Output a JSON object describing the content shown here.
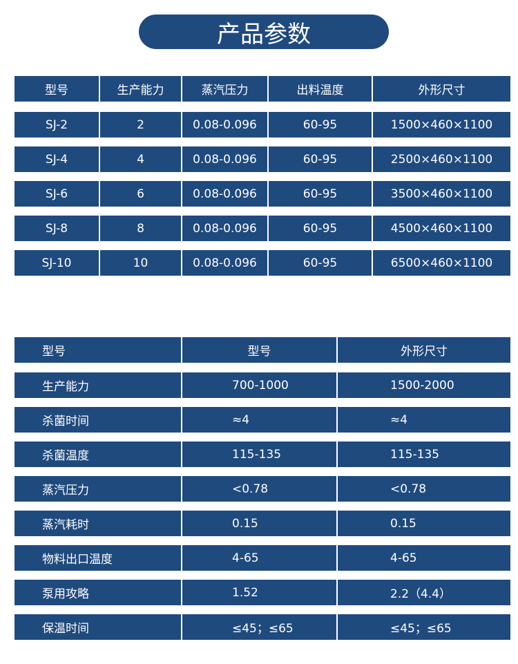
{
  "title": "产品参数",
  "table1": {
    "headers": [
      "型号",
      "生产能力",
      "蒸汽压力",
      "出料温度",
      "外形尺寸"
    ],
    "rows": [
      [
        "SJ-2",
        "2",
        "0.08-0.096",
        "60-95",
        "1500×460×1100"
      ],
      [
        "SJ-4",
        "4",
        "0.08-0.096",
        "60-95",
        "2500×460×1100"
      ],
      [
        "SJ-6",
        "6",
        "0.08-0.096",
        "60-95",
        "3500×460×1100"
      ],
      [
        "SJ-8",
        "8",
        "0.08-0.096",
        "60-95",
        "4500×460×1100"
      ],
      [
        "SJ-10",
        "10",
        "0.08-0.096",
        "60-95",
        "6500×460×1100"
      ]
    ]
  },
  "table2": {
    "headers": [
      "型号",
      "型号",
      "外形尺寸"
    ],
    "rows": [
      [
        "生产能力",
        "700-1000",
        "1500-2000"
      ],
      [
        "杀菌时间",
        "≈4",
        "≈4"
      ],
      [
        "杀菌温度",
        "115-135",
        "115-135"
      ],
      [
        "蒸汽压力",
        "<0.78",
        "<0.78"
      ],
      [
        "蒸汽耗时",
        "0.15",
        "0.15"
      ],
      [
        "物料出口温度",
        "4-65",
        "4-65"
      ],
      [
        "泵用攻略",
        "1.52",
        "2.2（4.4）"
      ],
      [
        "保温时间",
        "≤45；≤65",
        "≤45；≤65"
      ]
    ]
  }
}
